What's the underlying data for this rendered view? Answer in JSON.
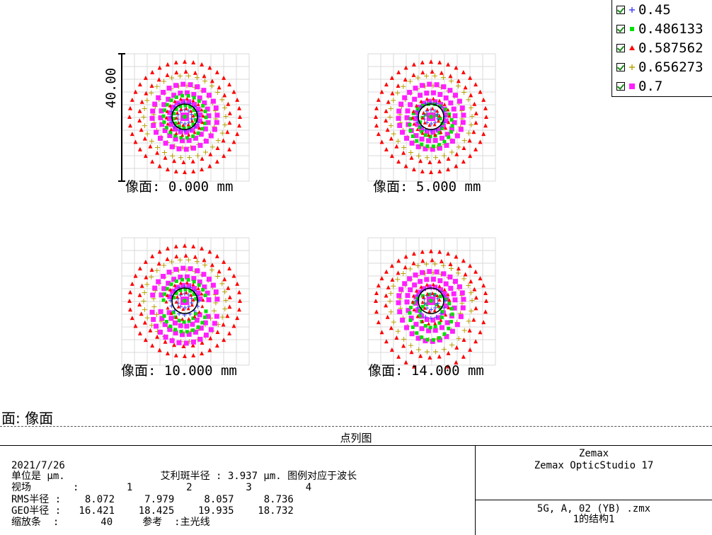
{
  "legend": {
    "items": [
      {
        "label": "0.45",
        "marker": "plus",
        "color": "#4040ff"
      },
      {
        "label": "0.486133",
        "marker": "square",
        "color": "#00e000"
      },
      {
        "label": "0.587562",
        "marker": "triangle",
        "color": "#ff0000"
      },
      {
        "label": "0.656273",
        "marker": "plus",
        "color": "#b8a000"
      },
      {
        "label": "0.7",
        "marker": "square",
        "color": "#ff20ff"
      }
    ]
  },
  "scale_bar_label": "40.00",
  "fields": [
    {
      "label": "像面: 0.000 mm"
    },
    {
      "label": "像面: 5.000 mm"
    },
    {
      "label": "像面: 10.000 mm"
    },
    {
      "label": "像面: 14.000 mm"
    }
  ],
  "surface_title": "面: 像面",
  "footer": {
    "title": "点列图",
    "date": "2021/7/26",
    "units_line": "单位是 μm.                艾利斑半径 : 3.937 μm. 图例对应于波长",
    "field_line": "视场       :        1         2         3         4",
    "rms_line": "RMS半径 :    8.072     7.979     8.057     8.736",
    "geo_line": "GEO半径 :   16.421    18.425    19.935    18.732",
    "scale_line": "缩放条  :       40     参考  :主光线",
    "company": "Zemax",
    "product": "Zemax OpticStudio 17",
    "file": "5G, A, 02 (YB) .zmx",
    "config": "1的结构1"
  },
  "chart_data": {
    "type": "scatter",
    "title": "点列图",
    "units": "μm",
    "airy_radius": 3.937,
    "scale_bar": 40,
    "wavelengths": [
      0.45,
      0.486133,
      0.587562,
      0.656273,
      0.7
    ],
    "fields": [
      {
        "field": 1,
        "image_height_mm": 0.0,
        "rms_radius": 8.072,
        "geo_radius": 16.421
      },
      {
        "field": 2,
        "image_height_mm": 5.0,
        "rms_radius": 7.979,
        "geo_radius": 18.425
      },
      {
        "field": 3,
        "image_height_mm": 10.0,
        "rms_radius": 8.057,
        "geo_radius": 19.935
      },
      {
        "field": 4,
        "image_height_mm": 14.0,
        "rms_radius": 8.736,
        "geo_radius": 18.732
      }
    ],
    "reference": "主光线",
    "grid": true
  }
}
